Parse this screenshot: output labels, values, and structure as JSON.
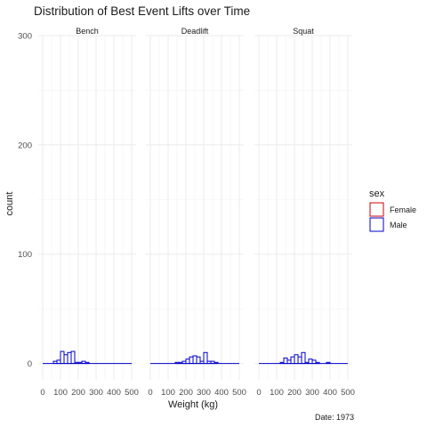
{
  "chart_data": {
    "type": "histogram",
    "title": "Distribution of Best Event Lifts over Time",
    "xlabel": "Weight (kg)",
    "ylabel": "count",
    "caption": "Date: 1973",
    "x_ticks": [
      0,
      100,
      200,
      300,
      400,
      500
    ],
    "x_minor_ticks": [
      50,
      150,
      250,
      350,
      450
    ],
    "y_ticks": [
      0,
      100,
      200,
      300
    ],
    "y_minor_ticks": [
      50,
      150,
      250
    ],
    "xlim": [
      -25,
      525
    ],
    "ylim": [
      -15,
      300
    ],
    "bin_width": 20,
    "grid": true,
    "legend": {
      "title": "sex",
      "position": "right",
      "entries": [
        {
          "label": "Female",
          "color": "#cc0000"
        },
        {
          "label": "Male",
          "color": "#0000cc"
        }
      ]
    },
    "facets": [
      {
        "label": "Bench",
        "series": [
          {
            "name": "Female",
            "color": "#cc0000",
            "bins": []
          },
          {
            "name": "Male",
            "color": "#0000cc",
            "bins": [
              {
                "x0": 60,
                "x1": 80,
                "count": 2
              },
              {
                "x0": 80,
                "x1": 100,
                "count": 3
              },
              {
                "x0": 100,
                "x1": 120,
                "count": 11
              },
              {
                "x0": 120,
                "x1": 140,
                "count": 8
              },
              {
                "x0": 140,
                "x1": 160,
                "count": 10
              },
              {
                "x0": 160,
                "x1": 180,
                "count": 11
              },
              {
                "x0": 180,
                "x1": 200,
                "count": 1
              },
              {
                "x0": 200,
                "x1": 220,
                "count": 1
              },
              {
                "x0": 220,
                "x1": 240,
                "count": 2
              },
              {
                "x0": 240,
                "x1": 260,
                "count": 1
              }
            ]
          }
        ]
      },
      {
        "label": "Deadlift",
        "series": [
          {
            "name": "Female",
            "color": "#cc0000",
            "bins": []
          },
          {
            "name": "Male",
            "color": "#0000cc",
            "bins": [
              {
                "x0": 140,
                "x1": 160,
                "count": 1
              },
              {
                "x0": 160,
                "x1": 180,
                "count": 1
              },
              {
                "x0": 180,
                "x1": 200,
                "count": 2
              },
              {
                "x0": 200,
                "x1": 220,
                "count": 4
              },
              {
                "x0": 220,
                "x1": 240,
                "count": 6
              },
              {
                "x0": 240,
                "x1": 260,
                "count": 7
              },
              {
                "x0": 260,
                "x1": 280,
                "count": 6
              },
              {
                "x0": 280,
                "x1": 300,
                "count": 2
              },
              {
                "x0": 300,
                "x1": 320,
                "count": 10
              },
              {
                "x0": 320,
                "x1": 340,
                "count": 2
              },
              {
                "x0": 340,
                "x1": 360,
                "count": 2
              },
              {
                "x0": 360,
                "x1": 380,
                "count": 1
              }
            ]
          }
        ]
      },
      {
        "label": "Squat",
        "series": [
          {
            "name": "Female",
            "color": "#cc0000",
            "bins": []
          },
          {
            "name": "Male",
            "color": "#0000cc",
            "bins": [
              {
                "x0": 120,
                "x1": 140,
                "count": 1
              },
              {
                "x0": 140,
                "x1": 160,
                "count": 5
              },
              {
                "x0": 160,
                "x1": 180,
                "count": 3
              },
              {
                "x0": 180,
                "x1": 200,
                "count": 6
              },
              {
                "x0": 200,
                "x1": 220,
                "count": 8
              },
              {
                "x0": 220,
                "x1": 240,
                "count": 6
              },
              {
                "x0": 240,
                "x1": 260,
                "count": 10
              },
              {
                "x0": 260,
                "x1": 280,
                "count": 1
              },
              {
                "x0": 280,
                "x1": 300,
                "count": 4
              },
              {
                "x0": 300,
                "x1": 320,
                "count": 3
              },
              {
                "x0": 320,
                "x1": 340,
                "count": 1
              },
              {
                "x0": 380,
                "x1": 400,
                "count": 1
              }
            ]
          }
        ]
      }
    ]
  }
}
